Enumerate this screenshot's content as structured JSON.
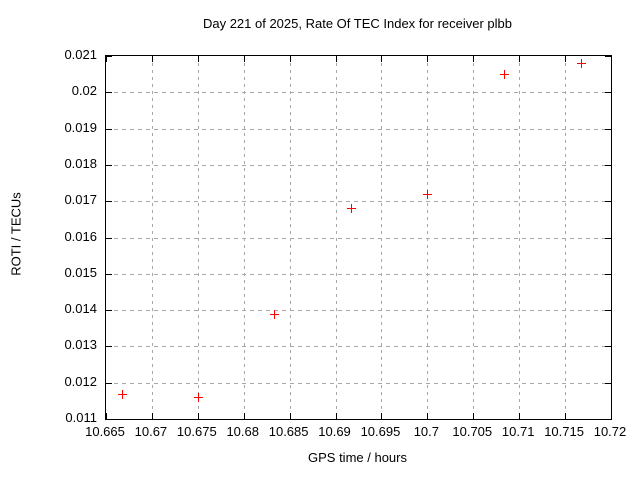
{
  "window": {
    "title": "Day 221 of 2025, Rate Of TEC Index for receiver plbb"
  },
  "colors": {
    "background": "#ffffff",
    "axis": "#000000",
    "grid": "#a8a8a8",
    "marker": "#ff0000",
    "text": "#000000"
  },
  "chart_data": {
    "type": "scatter",
    "title": "Day 221 of 2025, Rate Of TEC Index for receiver plbb",
    "xlabel": "GPS time / hours",
    "ylabel": "ROTI / TECUs",
    "xlim": [
      10.665,
      10.72
    ],
    "ylim": [
      0.011,
      0.021
    ],
    "grid": true,
    "legend": "none",
    "marker": {
      "shape": "plus",
      "color": "#ff0000",
      "size": 9
    },
    "xticks": {
      "values": [
        10.665,
        10.67,
        10.675,
        10.68,
        10.685,
        10.69,
        10.695,
        10.7,
        10.705,
        10.71,
        10.715,
        10.72
      ],
      "labels": [
        "10.665",
        "10.67",
        "10.675",
        "10.68",
        "10.685",
        "10.69",
        "10.695",
        "10.7",
        "10.705",
        "10.71",
        "10.715",
        "10.72"
      ]
    },
    "yticks": {
      "values": [
        0.011,
        0.012,
        0.013,
        0.014,
        0.015,
        0.016,
        0.017,
        0.018,
        0.019,
        0.02,
        0.021
      ],
      "labels": [
        "0.011",
        "0.012",
        "0.013",
        "0.014",
        "0.015",
        "0.016",
        "0.017",
        "0.018",
        "0.019",
        "0.02",
        "0.021"
      ]
    },
    "series": [
      {
        "name": "ROTI",
        "x": [
          10.6667,
          10.675,
          10.6833,
          10.6917,
          10.7,
          10.7083,
          10.7167
        ],
        "y": [
          0.0117,
          0.0116,
          0.0139,
          0.0168,
          0.0172,
          0.0205,
          0.0208
        ]
      }
    ]
  }
}
